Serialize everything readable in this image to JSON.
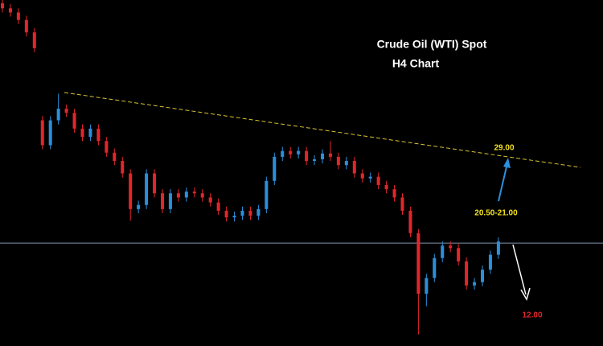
{
  "chart_data": {
    "type": "candlestick",
    "title": "Crude Oil (WTI) Spot",
    "subtitle": "H4 Chart",
    "annotations": [
      "29.00",
      "20.50-21.00",
      "12.00"
    ],
    "up_color": "#2b8fdc",
    "down_color": "#e3262b",
    "level_color": "#7f93a8",
    "ylim": [
      6.7,
      48.4
    ],
    "level": 19.1,
    "open": [
      48.0,
      47.4,
      46.9,
      46.0,
      44.5,
      33.9,
      30.9,
      33.9,
      35.3,
      34.8,
      32.9,
      31.9,
      32.9,
      31.4,
      30.0,
      29.0,
      27.5,
      23.2,
      23.7,
      27.5,
      25.1,
      23.2,
      25.1,
      24.6,
      25.3,
      25.1,
      24.6,
      24.0,
      23.0,
      22.2,
      22.4,
      23.0,
      22.4,
      23.2,
      26.6,
      29.5,
      30.2,
      29.8,
      30.2,
      29.0,
      29.2,
      29.9,
      29.5,
      28.5,
      29.0,
      27.5,
      26.9,
      27.1,
      26.1,
      25.6,
      24.6,
      23.0,
      20.3,
      13.0,
      14.9,
      17.3,
      18.8,
      18.5,
      16.9,
      14.0,
      14.4,
      15.9,
      17.7
    ],
    "high": [
      48.5,
      47.9,
      47.4,
      46.5,
      45.0,
      34.4,
      34.4,
      37.1,
      35.8,
      35.3,
      33.4,
      33.4,
      33.4,
      31.9,
      30.5,
      29.5,
      28.0,
      24.2,
      28.0,
      28.0,
      25.6,
      25.6,
      25.6,
      25.8,
      25.8,
      25.6,
      25.1,
      24.5,
      23.5,
      22.9,
      23.5,
      23.5,
      23.7,
      27.1,
      30.0,
      30.7,
      30.7,
      30.7,
      30.7,
      29.7,
      30.4,
      31.4,
      30.0,
      29.5,
      29.5,
      28.0,
      27.6,
      27.6,
      26.6,
      26.1,
      25.1,
      23.5,
      20.8,
      15.4,
      17.8,
      19.3,
      19.3,
      19.0,
      17.4,
      14.9,
      16.4,
      18.2,
      19.8
    ],
    "low": [
      46.9,
      46.4,
      45.5,
      44.0,
      42.1,
      30.4,
      30.4,
      33.4,
      34.3,
      32.4,
      31.4,
      31.4,
      30.9,
      29.5,
      28.5,
      27.0,
      21.8,
      22.7,
      23.2,
      24.6,
      22.7,
      22.7,
      24.1,
      24.1,
      24.6,
      24.1,
      23.5,
      22.5,
      21.7,
      21.7,
      21.9,
      21.9,
      21.9,
      22.7,
      26.1,
      29.0,
      29.3,
      29.3,
      28.5,
      28.5,
      28.7,
      29.0,
      28.0,
      28.0,
      27.0,
      26.4,
      26.4,
      25.6,
      25.1,
      24.1,
      22.5,
      19.8,
      8.1,
      11.5,
      14.4,
      16.8,
      18.0,
      16.4,
      13.5,
      13.5,
      13.9,
      15.4,
      17.2
    ],
    "close": [
      47.4,
      46.9,
      46.0,
      44.5,
      42.6,
      30.9,
      33.9,
      35.3,
      34.8,
      32.9,
      31.9,
      32.9,
      31.4,
      30.0,
      29.0,
      27.5,
      23.2,
      23.7,
      27.5,
      25.1,
      23.2,
      25.1,
      24.6,
      25.3,
      25.1,
      24.6,
      24.0,
      23.0,
      22.2,
      22.4,
      23.0,
      22.4,
      23.2,
      26.6,
      29.5,
      30.2,
      29.8,
      30.2,
      29.0,
      29.2,
      29.9,
      29.5,
      28.5,
      29.0,
      27.5,
      26.9,
      27.1,
      26.1,
      25.6,
      24.6,
      23.0,
      20.3,
      13.0,
      14.9,
      17.3,
      18.8,
      18.5,
      16.9,
      14.0,
      14.4,
      15.9,
      17.7,
      19.3
    ]
  }
}
